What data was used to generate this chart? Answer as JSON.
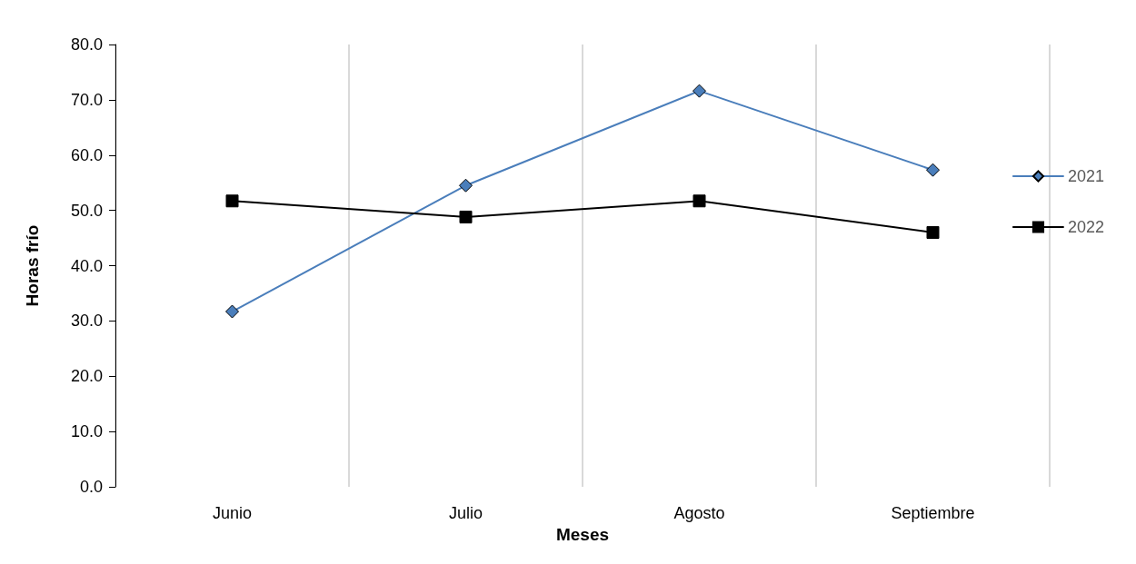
{
  "chart_data": {
    "type": "line",
    "xlabel": "Meses",
    "ylabel": "Horas frío",
    "categories": [
      "Junio",
      "Julio",
      "Agosto",
      "Septiembre"
    ],
    "series": [
      {
        "name": "2021",
        "color": "#4a7ebb",
        "marker": "diamond",
        "values": [
          31.7,
          54.5,
          71.6,
          57.3
        ]
      },
      {
        "name": "2022",
        "color": "#000000",
        "marker": "square",
        "values": [
          51.7,
          48.8,
          51.7,
          46.0
        ]
      }
    ],
    "ylim": [
      0,
      80
    ],
    "yticks": [
      {
        "value": 0,
        "label": "0.0"
      },
      {
        "value": 10,
        "label": "10.0"
      },
      {
        "value": 20,
        "label": "20.0"
      },
      {
        "value": 30,
        "label": "30.0"
      },
      {
        "value": 40,
        "label": "40.0"
      },
      {
        "value": 50,
        "label": "50.0"
      },
      {
        "value": 60,
        "label": "60.0"
      },
      {
        "value": 70,
        "label": "70.0"
      },
      {
        "value": 80,
        "label": "80.0"
      }
    ],
    "grid": "x",
    "legend": "right",
    "line_style": "solid"
  }
}
